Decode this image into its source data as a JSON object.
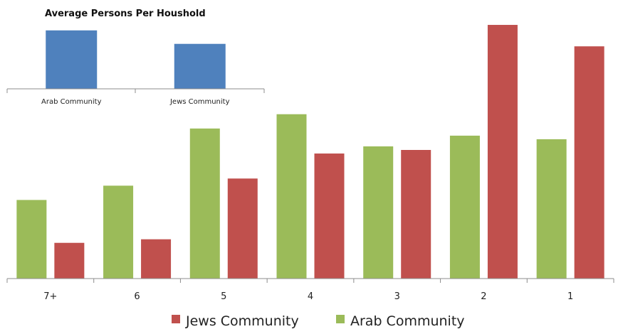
{
  "chart_data": [
    {
      "type": "bar",
      "title": "",
      "categories": [
        "7+",
        "6",
        "5",
        "4",
        "3",
        "2",
        "1"
      ],
      "series": [
        {
          "name": "Arab Community",
          "color": "#9BBB59",
          "values": [
            11,
            13,
            21,
            23,
            18.5,
            20,
            19.5
          ]
        },
        {
          "name": "Jews Community",
          "color": "#C0504D",
          "values": [
            5,
            5.5,
            14,
            17.5,
            18,
            35.5,
            32.5
          ]
        }
      ],
      "ylim": [
        0,
        36
      ],
      "grid": false,
      "y_axis_visible": false,
      "legend": {
        "position": "bottom",
        "entries": [
          "Jews Community",
          "Arab Community"
        ]
      }
    },
    {
      "type": "bar",
      "title": "Average Persons Per Houshold",
      "categories": [
        "Arab Community",
        "Jews Community"
      ],
      "values": [
        5.2,
        4.0
      ],
      "color": "#4F81BD",
      "ylim": [
        0,
        5.5
      ],
      "grid": false,
      "y_axis_visible": false
    }
  ]
}
